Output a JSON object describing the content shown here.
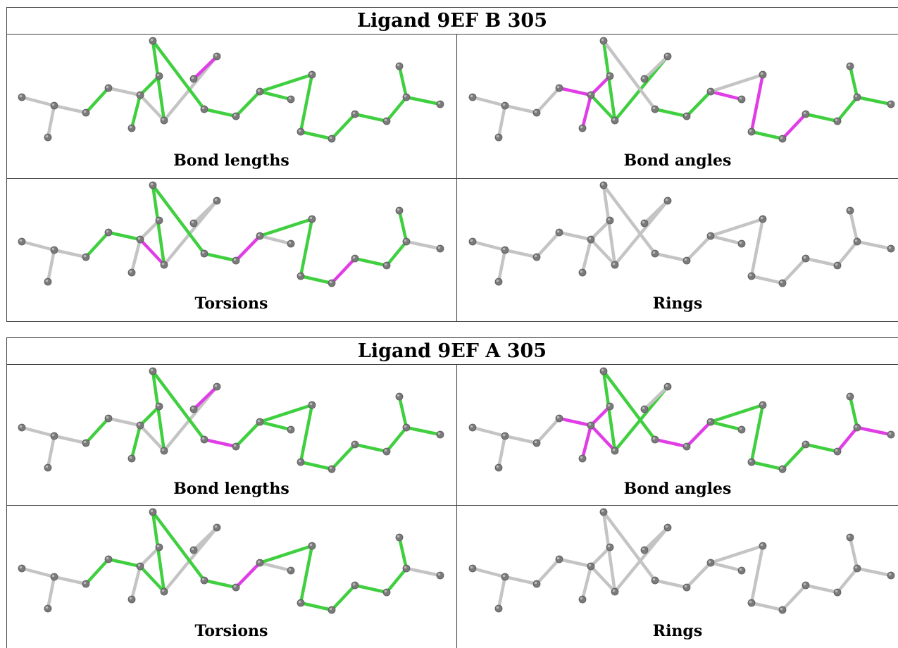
{
  "tables": [
    {
      "title": "Ligand 9EF B 305",
      "panels": [
        {
          "label": "Bond lengths",
          "magenta": [
            [
              10,
              11
            ]
          ],
          "green": [
            [
              2,
              3
            ],
            [
              3,
              4
            ],
            [
              5,
              6
            ],
            [
              5,
              7
            ],
            [
              8,
              9
            ],
            [
              9,
              12
            ],
            [
              12,
              13
            ],
            [
              13,
              14
            ],
            [
              14,
              15
            ],
            [
              14,
              16
            ],
            [
              16,
              17
            ],
            [
              17,
              18
            ],
            [
              18,
              19
            ],
            [
              19,
              20
            ],
            [
              20,
              21
            ],
            [
              21,
              22
            ],
            [
              21,
              23
            ]
          ]
        },
        {
          "label": "Bond angles",
          "magenta": [
            [
              4,
              5
            ],
            [
              5,
              6
            ],
            [
              5,
              7
            ],
            [
              9,
              10
            ],
            [
              10,
              12
            ],
            [
              14,
              15
            ],
            [
              15,
              16
            ],
            [
              16,
              17
            ],
            [
              18,
              19
            ]
          ],
          "green": [
            [
              5,
              8
            ],
            [
              8,
              9
            ],
            [
              8,
              11
            ],
            [
              12,
              13
            ],
            [
              13,
              14
            ],
            [
              17,
              18
            ],
            [
              19,
              20
            ],
            [
              20,
              21
            ],
            [
              21,
              22
            ],
            [
              21,
              23
            ]
          ]
        },
        {
          "label": "Torsions",
          "magenta": [
            [
              5,
              8
            ],
            [
              13,
              14
            ],
            [
              18,
              19
            ]
          ],
          "green": [
            [
              2,
              3
            ],
            [
              3,
              4
            ],
            [
              4,
              5
            ],
            [
              8,
              9
            ],
            [
              9,
              12
            ],
            [
              12,
              13
            ],
            [
              14,
              16
            ],
            [
              16,
              17
            ],
            [
              17,
              18
            ],
            [
              19,
              20
            ],
            [
              20,
              21
            ],
            [
              21,
              22
            ]
          ]
        },
        {
          "label": "Rings",
          "magenta": [],
          "green": []
        }
      ]
    },
    {
      "title": "Ligand 9EF A 305",
      "panels": [
        {
          "label": "Bond lengths",
          "magenta": [
            [
              10,
              11
            ],
            [
              12,
              13
            ]
          ],
          "green": [
            [
              2,
              3
            ],
            [
              3,
              4
            ],
            [
              5,
              6
            ],
            [
              5,
              7
            ],
            [
              8,
              9
            ],
            [
              9,
              12
            ],
            [
              13,
              14
            ],
            [
              14,
              15
            ],
            [
              14,
              16
            ],
            [
              16,
              17
            ],
            [
              17,
              18
            ],
            [
              18,
              19
            ],
            [
              19,
              20
            ],
            [
              20,
              21
            ],
            [
              21,
              22
            ],
            [
              21,
              23
            ]
          ]
        },
        {
          "label": "Bond angles",
          "magenta": [
            [
              4,
              5
            ],
            [
              5,
              6
            ],
            [
              5,
              7
            ],
            [
              5,
              8
            ],
            [
              12,
              13
            ],
            [
              13,
              14
            ],
            [
              20,
              21
            ],
            [
              21,
              23
            ]
          ],
          "green": [
            [
              8,
              9
            ],
            [
              8,
              11
            ],
            [
              9,
              12
            ],
            [
              14,
              15
            ],
            [
              14,
              16
            ],
            [
              16,
              17
            ],
            [
              17,
              18
            ],
            [
              18,
              19
            ],
            [
              19,
              20
            ],
            [
              21,
              22
            ]
          ]
        },
        {
          "label": "Torsions",
          "magenta": [
            [
              13,
              14
            ]
          ],
          "green": [
            [
              2,
              3
            ],
            [
              3,
              4
            ],
            [
              4,
              5
            ],
            [
              5,
              8
            ],
            [
              8,
              9
            ],
            [
              9,
              12
            ],
            [
              12,
              13
            ],
            [
              14,
              16
            ],
            [
              16,
              17
            ],
            [
              17,
              18
            ],
            [
              18,
              19
            ],
            [
              19,
              20
            ],
            [
              20,
              21
            ],
            [
              21,
              22
            ]
          ]
        },
        {
          "label": "Rings",
          "magenta": [],
          "green": []
        }
      ]
    }
  ],
  "colors": {
    "neutral": "#c4c4c4",
    "green": "#3fcf3f",
    "magenta": "#e03de6",
    "atom": "#7a7a7a"
  }
}
